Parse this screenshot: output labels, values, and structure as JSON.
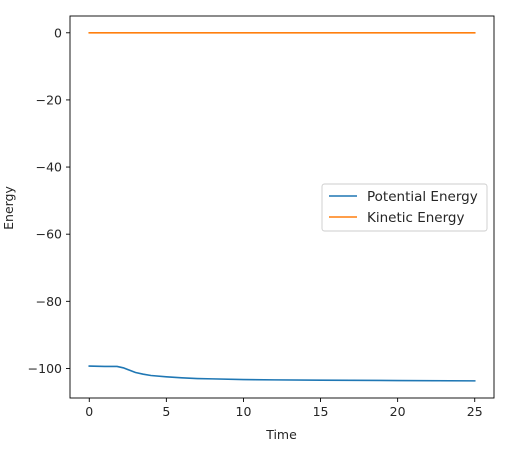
{
  "chart_data": {
    "type": "line",
    "xlabel": "Time",
    "ylabel": "Energy",
    "xlim": [
      -1.25,
      26.25
    ],
    "ylim": [
      -108.8,
      5.0
    ],
    "xticks": [
      0,
      5,
      10,
      15,
      20,
      25
    ],
    "yticks": [
      0,
      -20,
      -40,
      -60,
      -80,
      -100
    ],
    "xtick_labels": [
      "0",
      "5",
      "10",
      "15",
      "20",
      "25"
    ],
    "ytick_labels": [
      "0",
      "−20",
      "−40",
      "−60",
      "−80",
      "−100"
    ],
    "grid": false,
    "legend_position": "center-right",
    "series": [
      {
        "name": "Potential Energy",
        "color": "#1f77b4",
        "x": [
          0,
          1,
          1.8,
          2.2,
          2.6,
          3.0,
          3.5,
          4.0,
          5.0,
          6.0,
          7.0,
          8.0,
          10.0,
          12.0,
          15.0,
          20.0,
          25.0
        ],
        "y": [
          -99.3,
          -99.4,
          -99.4,
          -99.8,
          -100.5,
          -101.2,
          -101.7,
          -102.1,
          -102.5,
          -102.8,
          -103.0,
          -103.1,
          -103.3,
          -103.4,
          -103.5,
          -103.6,
          -103.7
        ]
      },
      {
        "name": "Kinetic Energy",
        "color": "#ff7f0e",
        "x": [
          0,
          25
        ],
        "y": [
          0.0,
          0.0
        ]
      }
    ]
  }
}
